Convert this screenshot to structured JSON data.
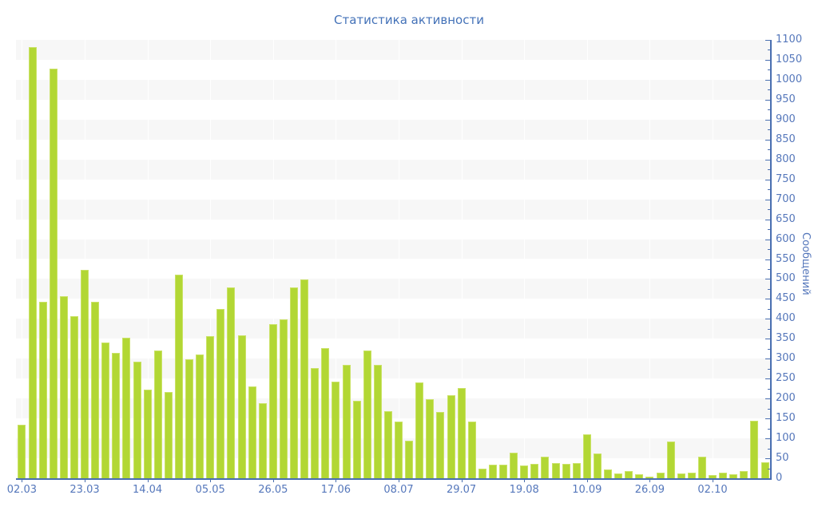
{
  "title": "Статистика активности",
  "colors": {
    "bar_fill": "#b2d734",
    "bar_border": "#cae266",
    "axis": "#4a6fb0",
    "tick_label": "#5577bb",
    "title_text": "#4472b8",
    "stripe": "#f7f7f7",
    "background": "#ffffff"
  },
  "chart_data": {
    "type": "bar",
    "title": "Статистика активности",
    "ylabel": "Сообщений",
    "xlabel": "",
    "ylim": [
      0,
      1100
    ],
    "y_tick_step": 50,
    "y_minor_tick_step": 25,
    "grid": "alternating horizontal stripes, faint vertical lines at labeled ticks",
    "legend_position": "none",
    "x_tick_labels": [
      "02.03",
      "23.03",
      "14.04",
      "05.05",
      "26.05",
      "17.06",
      "08.07",
      "29.07",
      "19.08",
      "10.09",
      "26.09",
      "02.10"
    ],
    "x_label_every_n_bars": 6,
    "values": [
      134,
      1082,
      442,
      1028,
      457,
      407,
      522,
      442,
      340,
      314,
      352,
      292,
      222,
      320,
      217,
      510,
      298,
      310,
      356,
      424,
      479,
      358,
      230,
      189,
      386,
      398,
      478,
      499,
      277,
      327,
      242,
      284,
      195,
      320,
      285,
      168,
      142,
      94,
      240,
      199,
      167,
      209,
      227,
      142,
      24,
      35,
      35,
      64,
      32,
      36,
      55,
      38,
      37,
      38,
      110,
      62,
      22,
      12,
      19,
      10,
      4,
      14,
      92,
      12,
      14,
      55,
      8,
      14,
      10,
      19,
      144,
      40
    ]
  }
}
